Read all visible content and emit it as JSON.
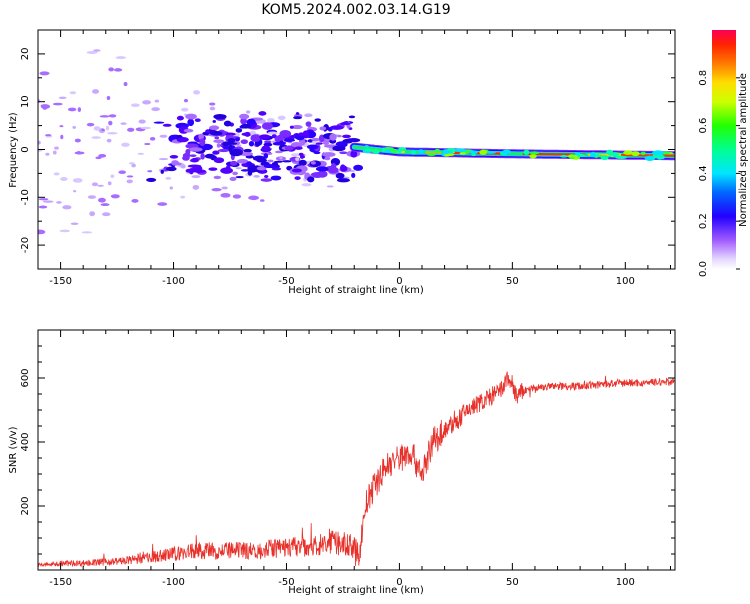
{
  "title": "KOM5.2024.002.03.14.G19",
  "chart_data": [
    {
      "type": "heatmap",
      "xlabel": "Height of straight line (km)",
      "ylabel": "Frequency (Hz)",
      "xlim": [
        -160,
        122
      ],
      "ylim": [
        -25,
        25
      ],
      "xticks": [
        -150,
        -100,
        -50,
        0,
        50,
        100
      ],
      "yticks": [
        -20,
        -10,
        0,
        10,
        20
      ],
      "colorbar": {
        "label": "Normalized spectral amplitude",
        "ticks": [
          0.0,
          0.2,
          0.4,
          0.6,
          0.8
        ],
        "range": [
          0,
          1
        ]
      },
      "trace_frequency_hz": [
        {
          "x": -20,
          "y": 0.5
        },
        {
          "x": 0,
          "y": -0.5
        },
        {
          "x": 50,
          "y": -0.9
        },
        {
          "x": 122,
          "y": -1.3
        }
      ]
    },
    {
      "type": "line",
      "xlabel": "Height of straight line (km)",
      "ylabel": "SNR (v/v)",
      "xlim": [
        -160,
        122
      ],
      "ylim": [
        0,
        750
      ],
      "xticks": [
        -150,
        -100,
        -50,
        0,
        50,
        100
      ],
      "yticks": [
        200,
        400,
        600
      ],
      "color": "#e8302a",
      "series": [
        {
          "x": [
            -160,
            -150,
            -140,
            -130,
            -120,
            -110,
            -100,
            -90,
            -80,
            -70,
            -60,
            -50,
            -40,
            -30,
            -22,
            -18,
            -15,
            -12,
            -8,
            -5,
            0,
            5,
            10,
            15,
            20,
            25,
            30,
            35,
            40,
            45,
            48,
            50,
            52,
            55,
            60,
            70,
            80,
            90,
            100,
            110,
            122
          ],
          "y": [
            15,
            20,
            22,
            25,
            30,
            40,
            50,
            60,
            60,
            60,
            65,
            70,
            75,
            85,
            80,
            40,
            200,
            250,
            300,
            330,
            350,
            370,
            300,
            400,
            440,
            460,
            500,
            520,
            540,
            560,
            600,
            580,
            540,
            560,
            570,
            575,
            575,
            580,
            585,
            585,
            590
          ]
        }
      ]
    }
  ]
}
